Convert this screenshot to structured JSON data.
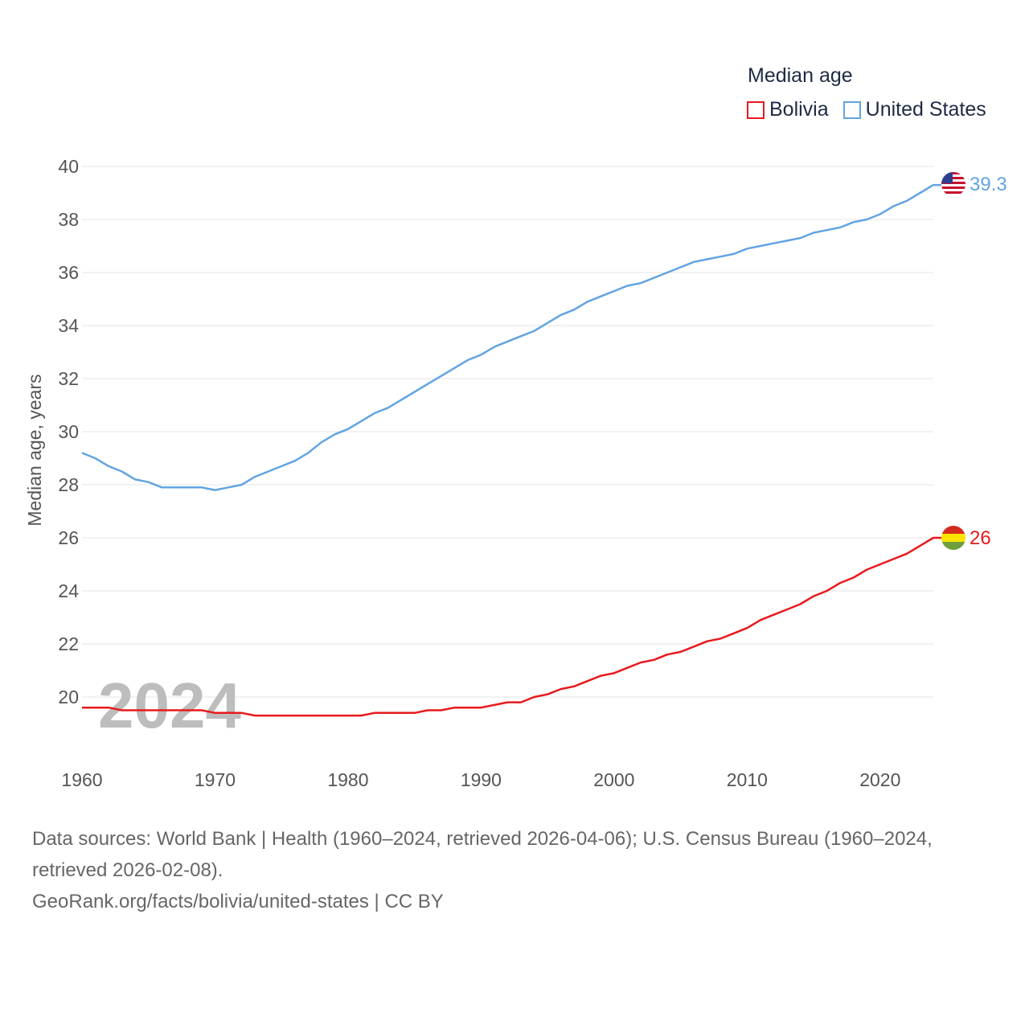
{
  "chart_data": {
    "type": "line",
    "title": "",
    "legend_title": "Median age",
    "legend_position": "top-right",
    "ylabel": "Median age, years",
    "xlabel": "",
    "ylim": [
      18,
      41
    ],
    "xlim": [
      1960,
      2025.5
    ],
    "yticks": [
      20,
      22,
      24,
      26,
      28,
      30,
      32,
      34,
      36,
      38,
      40
    ],
    "xticks": [
      1960,
      1970,
      1980,
      1990,
      2000,
      2010,
      2020
    ],
    "grid": true,
    "year_overlay": "2024",
    "x": [
      1960,
      1961,
      1962,
      1963,
      1964,
      1965,
      1966,
      1967,
      1968,
      1969,
      1970,
      1971,
      1972,
      1973,
      1974,
      1975,
      1976,
      1977,
      1978,
      1979,
      1980,
      1981,
      1982,
      1983,
      1984,
      1985,
      1986,
      1987,
      1988,
      1989,
      1990,
      1991,
      1992,
      1993,
      1994,
      1995,
      1996,
      1997,
      1998,
      1999,
      2000,
      2001,
      2002,
      2003,
      2004,
      2005,
      2006,
      2007,
      2008,
      2009,
      2010,
      2011,
      2012,
      2013,
      2014,
      2015,
      2016,
      2017,
      2018,
      2019,
      2020,
      2021,
      2022,
      2023,
      2024
    ],
    "series": [
      {
        "name": "Bolivia",
        "color": "#e8191c",
        "flag": "bolivia-flag",
        "end_label": "26",
        "values": [
          19.6,
          19.6,
          19.6,
          19.5,
          19.5,
          19.5,
          19.5,
          19.5,
          19.5,
          19.5,
          19.4,
          19.4,
          19.4,
          19.3,
          19.3,
          19.3,
          19.3,
          19.3,
          19.3,
          19.3,
          19.3,
          19.3,
          19.4,
          19.4,
          19.4,
          19.4,
          19.5,
          19.5,
          19.6,
          19.6,
          19.6,
          19.7,
          19.8,
          19.8,
          20.0,
          20.1,
          20.3,
          20.4,
          20.6,
          20.8,
          20.9,
          21.1,
          21.3,
          21.4,
          21.6,
          21.7,
          21.9,
          22.1,
          22.2,
          22.4,
          22.6,
          22.9,
          23.1,
          23.3,
          23.5,
          23.8,
          24.0,
          24.3,
          24.5,
          24.8,
          25.0,
          25.2,
          25.4,
          25.7,
          26.0
        ]
      },
      {
        "name": "United States",
        "color": "#62a4e2",
        "flag": "united-states-flag",
        "end_label": "39.3",
        "values": [
          29.2,
          29.0,
          28.7,
          28.5,
          28.2,
          28.1,
          27.9,
          27.9,
          27.9,
          27.9,
          27.8,
          27.9,
          28.0,
          28.3,
          28.5,
          28.7,
          28.9,
          29.2,
          29.6,
          29.9,
          30.1,
          30.4,
          30.7,
          30.9,
          31.2,
          31.5,
          31.8,
          32.1,
          32.4,
          32.7,
          32.9,
          33.2,
          33.4,
          33.6,
          33.8,
          34.1,
          34.4,
          34.6,
          34.9,
          35.1,
          35.3,
          35.5,
          35.6,
          35.8,
          36.0,
          36.2,
          36.4,
          36.5,
          36.6,
          36.7,
          36.9,
          37.0,
          37.1,
          37.2,
          37.3,
          37.5,
          37.6,
          37.7,
          37.9,
          38.0,
          38.2,
          38.5,
          38.7,
          39.0,
          39.3
        ]
      }
    ]
  },
  "sources": {
    "line1": "Data sources: World Bank | Health (1960–2024, retrieved 2026-04-06); U.S. Census Bureau (1960–2024, retrieved 2026-02-08).",
    "line2": "GeoRank.org/facts/bolivia/united-states | CC BY"
  }
}
